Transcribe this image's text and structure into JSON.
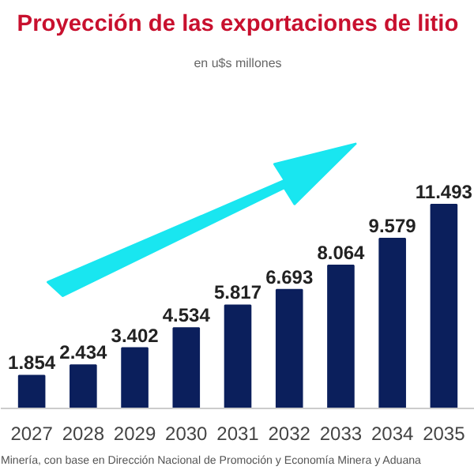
{
  "chart_data": {
    "type": "bar",
    "title": "Proyección de las exportaciones de litio",
    "subtitle": "en u$s millones",
    "categories": [
      "2027",
      "2028",
      "2029",
      "2030",
      "2031",
      "2032",
      "2033",
      "2034",
      "2035"
    ],
    "values": [
      1854,
      2434,
      3402,
      4534,
      5817,
      6693,
      8064,
      9579,
      11493
    ],
    "value_labels": [
      "1.854",
      "2.434",
      "3.402",
      "4.534",
      "5.817",
      "6.693",
      "8.064",
      "9.579",
      "11.493"
    ],
    "color": "#0b1f5c",
    "annotations": [
      "Minería, con base en Dirección Nacional de Promoción y Economía Minera y Aduana"
    ]
  }
}
